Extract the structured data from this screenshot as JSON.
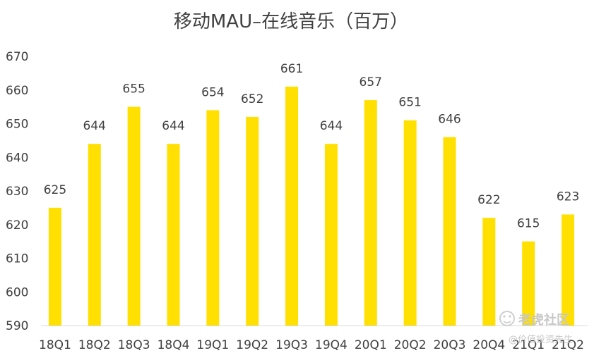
{
  "chart_data": {
    "type": "bar",
    "title": "移动MAU–在线音乐（百万）",
    "categories": [
      "18Q1",
      "18Q2",
      "18Q3",
      "18Q4",
      "19Q1",
      "19Q2",
      "19Q3",
      "19Q4",
      "20Q1",
      "20Q2",
      "20Q3",
      "20Q4",
      "21Q1",
      "21Q2"
    ],
    "values": [
      625,
      644,
      655,
      644,
      654,
      652,
      661,
      644,
      657,
      651,
      646,
      622,
      615,
      623
    ],
    "ylim": [
      590,
      670
    ],
    "yticks": [
      590,
      600,
      610,
      620,
      630,
      640,
      650,
      660,
      670
    ],
    "data_labels": true,
    "grid": false,
    "legend": "none",
    "xlabel": "",
    "ylabel": ""
  },
  "colors": {
    "bar": "#FFE000",
    "text": "#404040",
    "axis": "#d9d9d9"
  },
  "watermark": {
    "brand": "老虎社区",
    "author": "@价值投资先生"
  }
}
